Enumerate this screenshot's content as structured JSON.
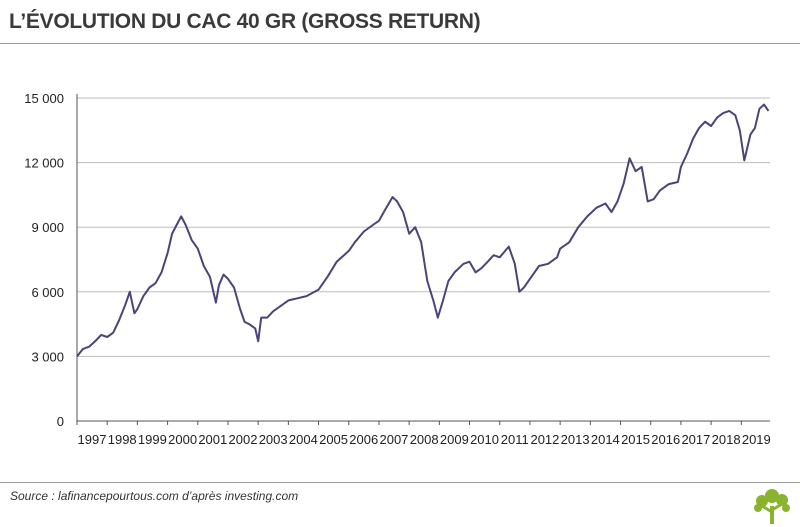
{
  "header": {
    "title": "L’ÉVOLUTION DU CAC 40 GR (GROSS RETURN)"
  },
  "footer": {
    "source": "Source : lafinancepourtous.com d’après investing.com"
  },
  "colors": {
    "line": "#4a4478",
    "grid": "#bdbdbd",
    "axis": "#555555"
  },
  "icons": {
    "logo": "tree-logo-icon"
  },
  "chart_data": {
    "type": "line",
    "title": "L’ÉVOLUTION DU CAC 40 GR (GROSS RETURN)",
    "xlabel": "",
    "ylabel": "",
    "xlim": [
      1997,
      2019.95
    ],
    "ylim": [
      0,
      15000
    ],
    "yticks": [
      0,
      3000,
      6000,
      9000,
      12000,
      15000
    ],
    "ytick_labels": [
      "0",
      "3 000",
      "6 000",
      "9 000",
      "12 000",
      "15 000"
    ],
    "xtick_labels": [
      "1997",
      "1998",
      "1999",
      "2000",
      "2001",
      "2002",
      "2003",
      "2004",
      "2005",
      "2006",
      "2007",
      "2008",
      "2009",
      "2010",
      "2011",
      "2012",
      "2013",
      "2014",
      "2015",
      "2016",
      "2017",
      "2018",
      "2019"
    ],
    "grid": true,
    "series": [
      {
        "x": [
          1997.0,
          1997.2,
          1997.4,
          1997.6,
          1997.8,
          1998.0,
          1998.2,
          1998.4,
          1998.6,
          1998.75,
          1998.9,
          1999.0,
          1999.2,
          1999.4,
          1999.6,
          1999.8,
          2000.0,
          2000.15,
          2000.3,
          2000.45,
          2000.6,
          2000.8,
          2001.0,
          2001.2,
          2001.4,
          2001.6,
          2001.7,
          2001.85,
          2002.0,
          2002.2,
          2002.4,
          2002.55,
          2002.7,
          2002.9,
          2003.0,
          2003.1,
          2003.3,
          2003.5,
          2003.7,
          2004.0,
          2004.3,
          2004.6,
          2005.0,
          2005.3,
          2005.6,
          2006.0,
          2006.2,
          2006.5,
          2006.8,
          2007.0,
          2007.2,
          2007.45,
          2007.6,
          2007.8,
          2008.0,
          2008.2,
          2008.4,
          2008.6,
          2008.8,
          2008.95,
          2009.1,
          2009.3,
          2009.5,
          2009.8,
          2010.0,
          2010.2,
          2010.4,
          2010.6,
          2010.8,
          2011.0,
          2011.3,
          2011.5,
          2011.65,
          2011.8,
          2012.0,
          2012.3,
          2012.6,
          2012.9,
          2013.0,
          2013.3,
          2013.6,
          2013.9,
          2014.2,
          2014.5,
          2014.7,
          2014.9,
          2015.1,
          2015.3,
          2015.5,
          2015.7,
          2015.9,
          2016.1,
          2016.3,
          2016.6,
          2016.9,
          2017.0,
          2017.2,
          2017.4,
          2017.6,
          2017.8,
          2018.0,
          2018.2,
          2018.4,
          2018.6,
          2018.8,
          2018.95,
          2019.1,
          2019.3,
          2019.45,
          2019.6,
          2019.75,
          2019.9
        ],
        "y": [
          3000,
          3350,
          3450,
          3700,
          4000,
          3900,
          4100,
          4700,
          5400,
          6000,
          5000,
          5200,
          5800,
          6200,
          6400,
          6900,
          7800,
          8700,
          9100,
          9500,
          9100,
          8400,
          8000,
          7200,
          6700,
          5500,
          6300,
          6800,
          6600,
          6200,
          5200,
          4600,
          4500,
          4300,
          3700,
          4800,
          4800,
          5100,
          5300,
          5600,
          5700,
          5800,
          6100,
          6700,
          7400,
          7900,
          8300,
          8800,
          9100,
          9300,
          9800,
          10400,
          10200,
          9700,
          8700,
          9000,
          8300,
          6500,
          5600,
          4800,
          5500,
          6500,
          6900,
          7300,
          7400,
          6900,
          7100,
          7400,
          7700,
          7600,
          8100,
          7300,
          6000,
          6200,
          6600,
          7200,
          7300,
          7600,
          8000,
          8300,
          9000,
          9500,
          9900,
          10100,
          9700,
          10200,
          11000,
          12200,
          11600,
          11800,
          10200,
          10300,
          10700,
          11000,
          11100,
          11800,
          12400,
          13100,
          13600,
          13900,
          13700,
          14100,
          14300,
          14400,
          14200,
          13500,
          12100,
          13300,
          13600,
          14500,
          14700,
          14400
        ]
      }
    ]
  }
}
